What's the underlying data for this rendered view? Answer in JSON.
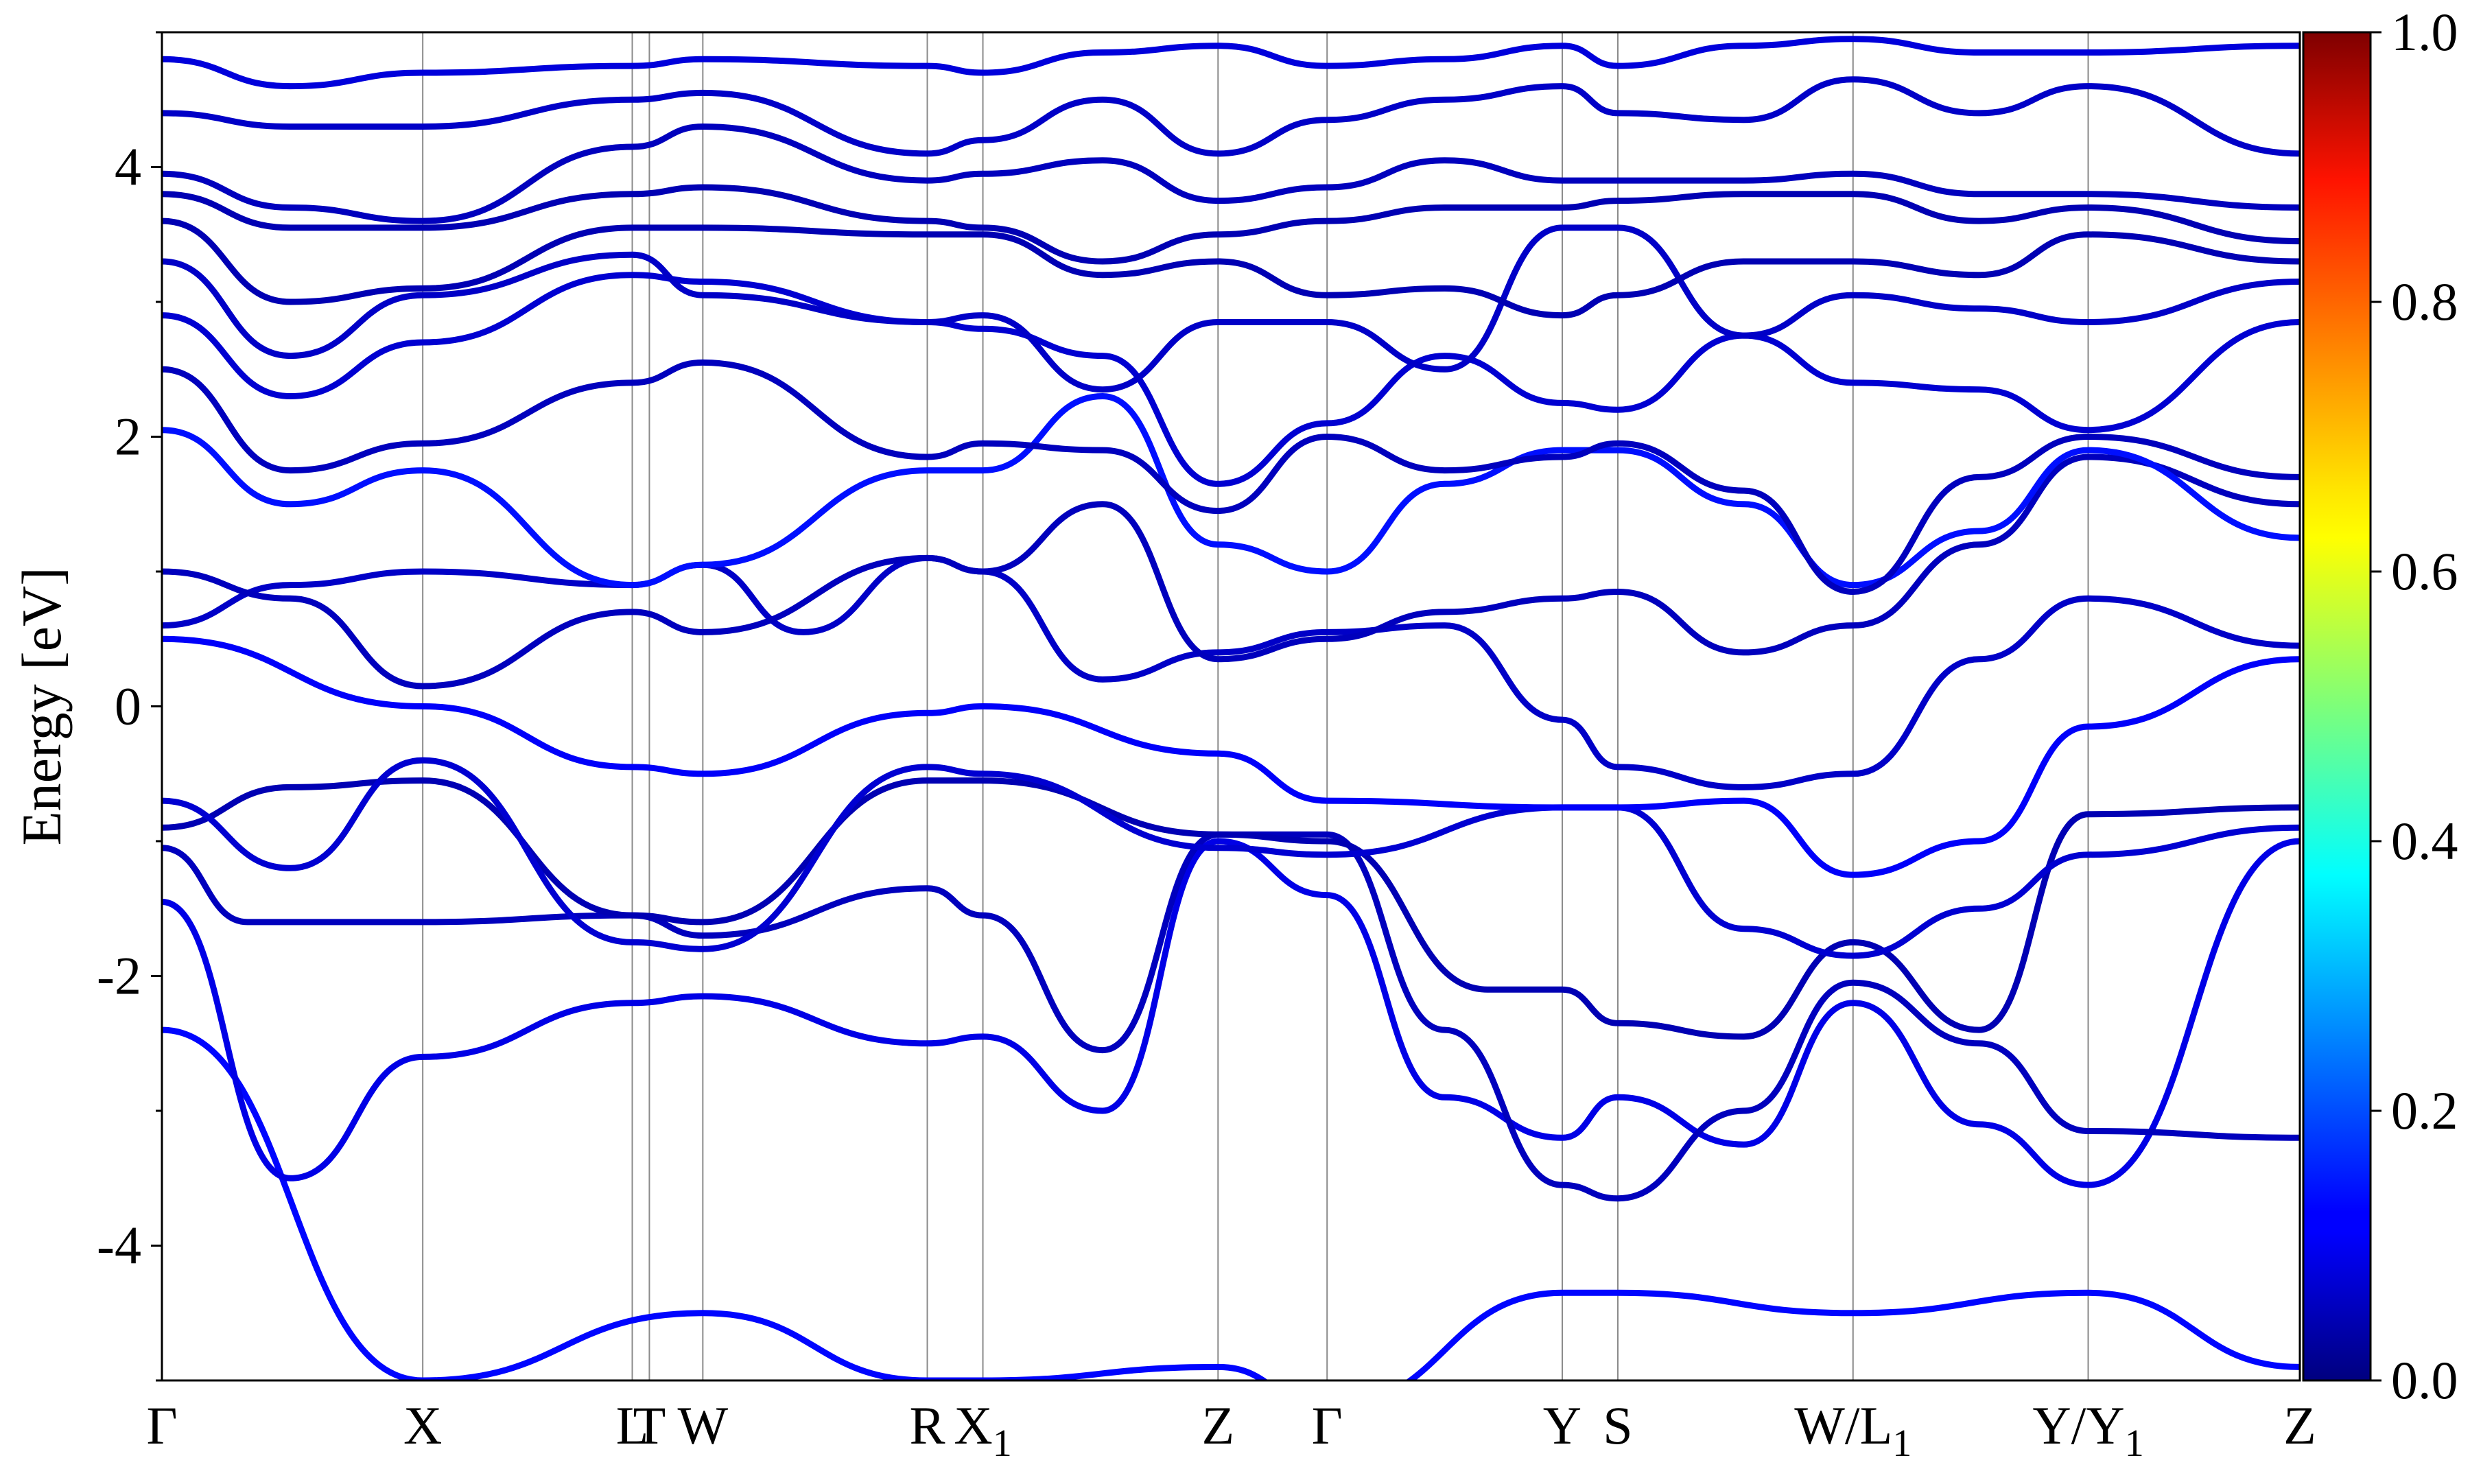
{
  "chart_data": {
    "type": "line",
    "subtype": "electronic band structure (projected weight colored)",
    "ylabel": "Energy [eV]",
    "xlabel": "",
    "ylim": [
      -5,
      5
    ],
    "y_ticks": [
      {
        "value": 4,
        "label": "4"
      },
      {
        "value": 2,
        "label": "2"
      },
      {
        "value": 0,
        "label": "0"
      },
      {
        "value": -2,
        "label": "-2"
      },
      {
        "value": -4,
        "label": "-4"
      }
    ],
    "k_path": [
      {
        "pos": 0.0,
        "label": "Γ",
        "sub": ""
      },
      {
        "pos": 0.122,
        "label": "X",
        "sub": ""
      },
      {
        "pos": 0.22,
        "label": "L",
        "sub": ""
      },
      {
        "pos": 0.228,
        "label": "T",
        "sub": ""
      },
      {
        "pos": 0.253,
        "label": "W",
        "sub": ""
      },
      {
        "pos": 0.358,
        "label": "R",
        "sub": ""
      },
      {
        "pos": 0.384,
        "label": "X",
        "sub": "1"
      },
      {
        "pos": 0.494,
        "label": "Z",
        "sub": ""
      },
      {
        "pos": 0.545,
        "label": "Γ",
        "sub": ""
      },
      {
        "pos": 0.655,
        "label": "Y",
        "sub": ""
      },
      {
        "pos": 0.681,
        "label": "S",
        "sub": ""
      },
      {
        "pos": 0.791,
        "label": "W/L",
        "sub": "1"
      },
      {
        "pos": 0.901,
        "label": "Y/Y",
        "sub": "1"
      },
      {
        "pos": 1.0,
        "label": "Z",
        "sub": ""
      }
    ],
    "colorbar": {
      "colormap": "jet",
      "range": [
        0.0,
        1.0
      ],
      "ticks": [
        {
          "value": 0.0,
          "label": "0.0"
        },
        {
          "value": 0.2,
          "label": "0.2"
        },
        {
          "value": 0.4,
          "label": "0.4"
        },
        {
          "value": 0.6,
          "label": "0.6"
        },
        {
          "value": 0.8,
          "label": "0.8"
        },
        {
          "value": 1.0,
          "label": "1.0"
        }
      ]
    },
    "grid": "vertical lines at high-symmetry points",
    "legend": "none",
    "bands": [
      {
        "weight": 0.13,
        "k": [
          0,
          0.122,
          0.253,
          0.358,
          0.384,
          0.494,
          0.545,
          0.655,
          0.681,
          0.791,
          0.901,
          1.0
        ],
        "e": [
          -2.4,
          -5.0,
          -4.5,
          -5.0,
          -5.0,
          -4.9,
          -5.2,
          -4.35,
          -4.35,
          -4.5,
          -4.35,
          -4.9
        ]
      },
      {
        "weight": 0.1,
        "k": [
          0,
          0.06,
          0.122,
          0.22,
          0.253,
          0.358,
          0.384,
          0.44,
          0.494,
          0.545,
          0.6,
          0.655,
          0.681,
          0.74,
          0.791,
          0.85,
          0.901,
          1.0
        ],
        "e": [
          -1.45,
          -3.5,
          -2.6,
          -2.2,
          -2.15,
          -2.5,
          -2.45,
          -3.0,
          -1.0,
          -1.4,
          -2.9,
          -3.2,
          -2.9,
          -3.25,
          -2.2,
          -3.1,
          -3.55,
          -1.0
        ]
      },
      {
        "weight": 0.06,
        "k": [
          0,
          0.04,
          0.122,
          0.22,
          0.253,
          0.358,
          0.384,
          0.44,
          0.494,
          0.545,
          0.6,
          0.655,
          0.681,
          0.74,
          0.791,
          0.85,
          0.901,
          1.0
        ],
        "e": [
          -1.05,
          -1.6,
          -1.6,
          -1.55,
          -1.7,
          -1.35,
          -1.55,
          -2.55,
          -0.95,
          -0.95,
          -2.4,
          -3.55,
          -3.65,
          -3.0,
          -2.05,
          -2.5,
          -3.15,
          -3.2
        ]
      },
      {
        "weight": 0.05,
        "k": [
          0,
          0.06,
          0.122,
          0.22,
          0.253,
          0.358,
          0.384,
          0.494,
          0.545,
          0.62,
          0.655,
          0.681,
          0.74,
          0.791,
          0.85,
          0.901,
          1.0
        ],
        "e": [
          -0.9,
          -0.6,
          -0.55,
          -1.55,
          -1.6,
          -0.55,
          -0.55,
          -0.95,
          -1.0,
          -2.1,
          -2.1,
          -2.35,
          -2.45,
          -1.75,
          -2.4,
          -0.8,
          -0.75
        ]
      },
      {
        "weight": 0.08,
        "k": [
          0,
          0.06,
          0.122,
          0.22,
          0.253,
          0.358,
          0.384,
          0.494,
          0.545,
          0.655,
          0.681,
          0.74,
          0.791,
          0.85,
          0.901,
          1.0
        ],
        "e": [
          -0.7,
          -1.2,
          -0.4,
          -1.75,
          -1.8,
          -0.45,
          -0.5,
          -1.05,
          -1.1,
          -0.75,
          -0.75,
          -1.65,
          -1.85,
          -1.5,
          -1.1,
          -0.9
        ]
      },
      {
        "weight": 0.12,
        "k": [
          0,
          0.122,
          0.22,
          0.253,
          0.358,
          0.384,
          0.494,
          0.545,
          0.655,
          0.681,
          0.74,
          0.791,
          0.85,
          0.901,
          1.0
        ],
        "e": [
          0.5,
          0.0,
          -0.45,
          -0.5,
          -0.05,
          0.0,
          -0.35,
          -0.7,
          -0.75,
          -0.75,
          -0.7,
          -1.25,
          -1.0,
          -0.15,
          0.35
        ]
      },
      {
        "weight": 0.07,
        "k": [
          0,
          0.06,
          0.122,
          0.22,
          0.253,
          0.3,
          0.358,
          0.384,
          0.44,
          0.494,
          0.545,
          0.6,
          0.655,
          0.681,
          0.74,
          0.791,
          0.85,
          0.901,
          1.0
        ],
        "e": [
          0.6,
          0.9,
          1.0,
          0.9,
          1.05,
          0.55,
          1.1,
          1.0,
          0.2,
          0.4,
          0.55,
          0.6,
          -0.1,
          -0.45,
          -0.6,
          -0.5,
          0.35,
          0.8,
          0.45
        ]
      },
      {
        "weight": 0.06,
        "k": [
          0,
          0.06,
          0.122,
          0.22,
          0.253,
          0.358,
          0.384,
          0.44,
          0.494,
          0.545,
          0.6,
          0.655,
          0.681,
          0.74,
          0.791,
          0.85,
          0.901,
          1.0
        ],
        "e": [
          1.0,
          0.8,
          0.15,
          0.7,
          0.55,
          1.1,
          1.0,
          1.5,
          0.35,
          0.5,
          0.7,
          0.8,
          0.85,
          0.4,
          0.6,
          1.2,
          1.85,
          1.5
        ]
      },
      {
        "weight": 0.14,
        "k": [
          0,
          0.06,
          0.122,
          0.22,
          0.253,
          0.358,
          0.384,
          0.44,
          0.494,
          0.545,
          0.6,
          0.655,
          0.681,
          0.74,
          0.791,
          0.85,
          0.901,
          1.0
        ],
        "e": [
          2.05,
          1.5,
          1.75,
          0.9,
          1.05,
          1.75,
          1.75,
          2.3,
          1.2,
          1.0,
          1.65,
          1.9,
          1.9,
          1.5,
          0.9,
          1.3,
          1.9,
          1.25
        ]
      },
      {
        "weight": 0.06,
        "k": [
          0,
          0.06,
          0.122,
          0.22,
          0.253,
          0.358,
          0.384,
          0.44,
          0.494,
          0.545,
          0.6,
          0.655,
          0.681,
          0.74,
          0.791,
          0.85,
          0.901,
          1.0
        ],
        "e": [
          2.5,
          1.75,
          1.95,
          2.4,
          2.55,
          1.85,
          1.95,
          1.9,
          1.45,
          2.0,
          1.75,
          1.85,
          1.95,
          1.6,
          0.85,
          1.7,
          2.0,
          1.7
        ]
      },
      {
        "weight": 0.08,
        "k": [
          0,
          0.06,
          0.122,
          0.22,
          0.253,
          0.358,
          0.384,
          0.44,
          0.494,
          0.545,
          0.6,
          0.655,
          0.681,
          0.74,
          0.791,
          0.85,
          0.901,
          1.0
        ],
        "e": [
          2.9,
          2.3,
          2.7,
          3.2,
          3.15,
          2.85,
          2.8,
          2.6,
          1.65,
          2.1,
          2.6,
          2.25,
          2.2,
          2.75,
          2.4,
          2.35,
          2.05,
          2.85
        ]
      },
      {
        "weight": 0.07,
        "k": [
          0,
          0.06,
          0.122,
          0.22,
          0.253,
          0.358,
          0.384,
          0.44,
          0.494,
          0.545,
          0.6,
          0.655,
          0.681,
          0.74,
          0.791,
          0.85,
          0.901,
          1.0
        ],
        "e": [
          3.3,
          2.6,
          3.05,
          3.35,
          3.05,
          2.85,
          2.9,
          2.35,
          2.85,
          2.85,
          2.5,
          3.55,
          3.55,
          2.75,
          3.05,
          2.95,
          2.85,
          3.15
        ]
      },
      {
        "weight": 0.05,
        "k": [
          0,
          0.06,
          0.122,
          0.22,
          0.253,
          0.358,
          0.384,
          0.44,
          0.494,
          0.545,
          0.6,
          0.655,
          0.681,
          0.74,
          0.791,
          0.85,
          0.901,
          1.0
        ],
        "e": [
          3.6,
          3.0,
          3.1,
          3.55,
          3.55,
          3.5,
          3.5,
          3.2,
          3.3,
          3.05,
          3.1,
          2.9,
          3.05,
          3.3,
          3.3,
          3.2,
          3.5,
          3.3
        ]
      },
      {
        "weight": 0.05,
        "k": [
          0,
          0.06,
          0.122,
          0.22,
          0.253,
          0.358,
          0.384,
          0.44,
          0.494,
          0.545,
          0.6,
          0.655,
          0.681,
          0.74,
          0.791,
          0.85,
          0.901,
          1.0
        ],
        "e": [
          3.8,
          3.55,
          3.55,
          3.8,
          3.85,
          3.6,
          3.55,
          3.3,
          3.5,
          3.6,
          3.7,
          3.7,
          3.75,
          3.8,
          3.8,
          3.6,
          3.7,
          3.45
        ]
      },
      {
        "weight": 0.06,
        "k": [
          0,
          0.06,
          0.122,
          0.22,
          0.253,
          0.358,
          0.384,
          0.44,
          0.494,
          0.545,
          0.6,
          0.655,
          0.681,
          0.74,
          0.791,
          0.85,
          0.901,
          1.0
        ],
        "e": [
          3.95,
          3.7,
          3.6,
          4.15,
          4.3,
          3.9,
          3.95,
          4.05,
          3.75,
          3.85,
          4.05,
          3.9,
          3.9,
          3.9,
          3.95,
          3.8,
          3.8,
          3.7
        ]
      },
      {
        "weight": 0.07,
        "k": [
          0,
          0.06,
          0.122,
          0.22,
          0.253,
          0.358,
          0.384,
          0.44,
          0.494,
          0.545,
          0.6,
          0.655,
          0.681,
          0.74,
          0.791,
          0.85,
          0.901,
          1.0
        ],
        "e": [
          4.4,
          4.3,
          4.3,
          4.5,
          4.55,
          4.1,
          4.2,
          4.5,
          4.1,
          4.35,
          4.5,
          4.6,
          4.4,
          4.35,
          4.65,
          4.4,
          4.6,
          4.1
        ]
      },
      {
        "weight": 0.09,
        "k": [
          0,
          0.06,
          0.122,
          0.22,
          0.253,
          0.358,
          0.384,
          0.44,
          0.494,
          0.545,
          0.6,
          0.655,
          0.681,
          0.74,
          0.791,
          0.85,
          0.901,
          1.0
        ],
        "e": [
          4.8,
          4.6,
          4.7,
          4.75,
          4.8,
          4.75,
          4.7,
          4.85,
          4.9,
          4.75,
          4.8,
          4.9,
          4.75,
          4.9,
          4.95,
          4.85,
          4.85,
          4.9
        ]
      }
    ]
  }
}
